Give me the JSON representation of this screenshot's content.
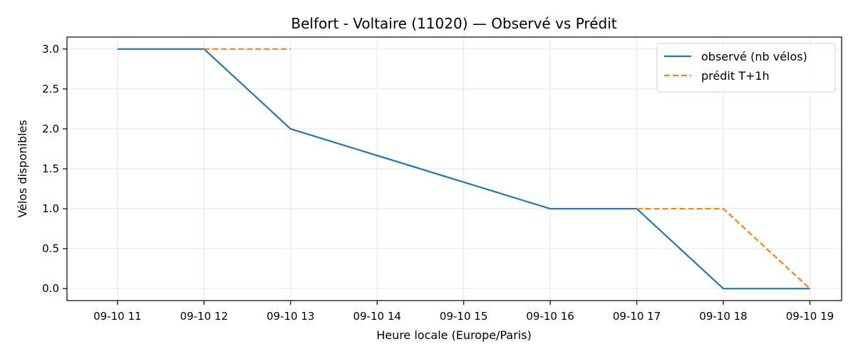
{
  "chart_data": {
    "type": "line",
    "title": "Belfort - Voltaire (11020) — Observé vs Prédit",
    "xlabel": "Heure locale (Europe/Paris)",
    "ylabel": "Vélos disponibles",
    "x_ticks": [
      "09-10 11",
      "09-10 12",
      "09-10 13",
      "09-10 14",
      "09-10 15",
      "09-10 16",
      "09-10 17",
      "09-10 18",
      "09-10 19"
    ],
    "y_ticks": [
      "0.0",
      "0.5",
      "1.0",
      "1.5",
      "2.0",
      "2.5",
      "3.0"
    ],
    "xlim": [
      "09-10 10:25",
      "09-10 19:22"
    ],
    "ylim": [
      -0.15,
      3.15
    ],
    "grid": true,
    "legend_position": "top-right",
    "series": [
      {
        "name": "observé (nb vélos)",
        "style": "solid",
        "color": "#1f77b4",
        "points": [
          {
            "x": "09-10 11",
            "y": 3
          },
          {
            "x": "09-10 12",
            "y": 3
          },
          {
            "x": "09-10 13",
            "y": 2
          },
          {
            "x": "09-10 16",
            "y": 1
          },
          {
            "x": "09-10 17",
            "y": 1
          },
          {
            "x": "09-10 18",
            "y": 0
          },
          {
            "x": "09-10 19",
            "y": 0
          }
        ]
      },
      {
        "name": "prédit T+1h",
        "style": "dashed",
        "color": "#ff7f0e",
        "segments": [
          [
            {
              "x": "09-10 12",
              "y": 3
            },
            {
              "x": "09-10 13",
              "y": 3
            }
          ],
          [
            {
              "x": "09-10 17",
              "y": 1
            },
            {
              "x": "09-10 18",
              "y": 1
            },
            {
              "x": "09-10 19",
              "y": 0
            }
          ]
        ]
      }
    ]
  }
}
